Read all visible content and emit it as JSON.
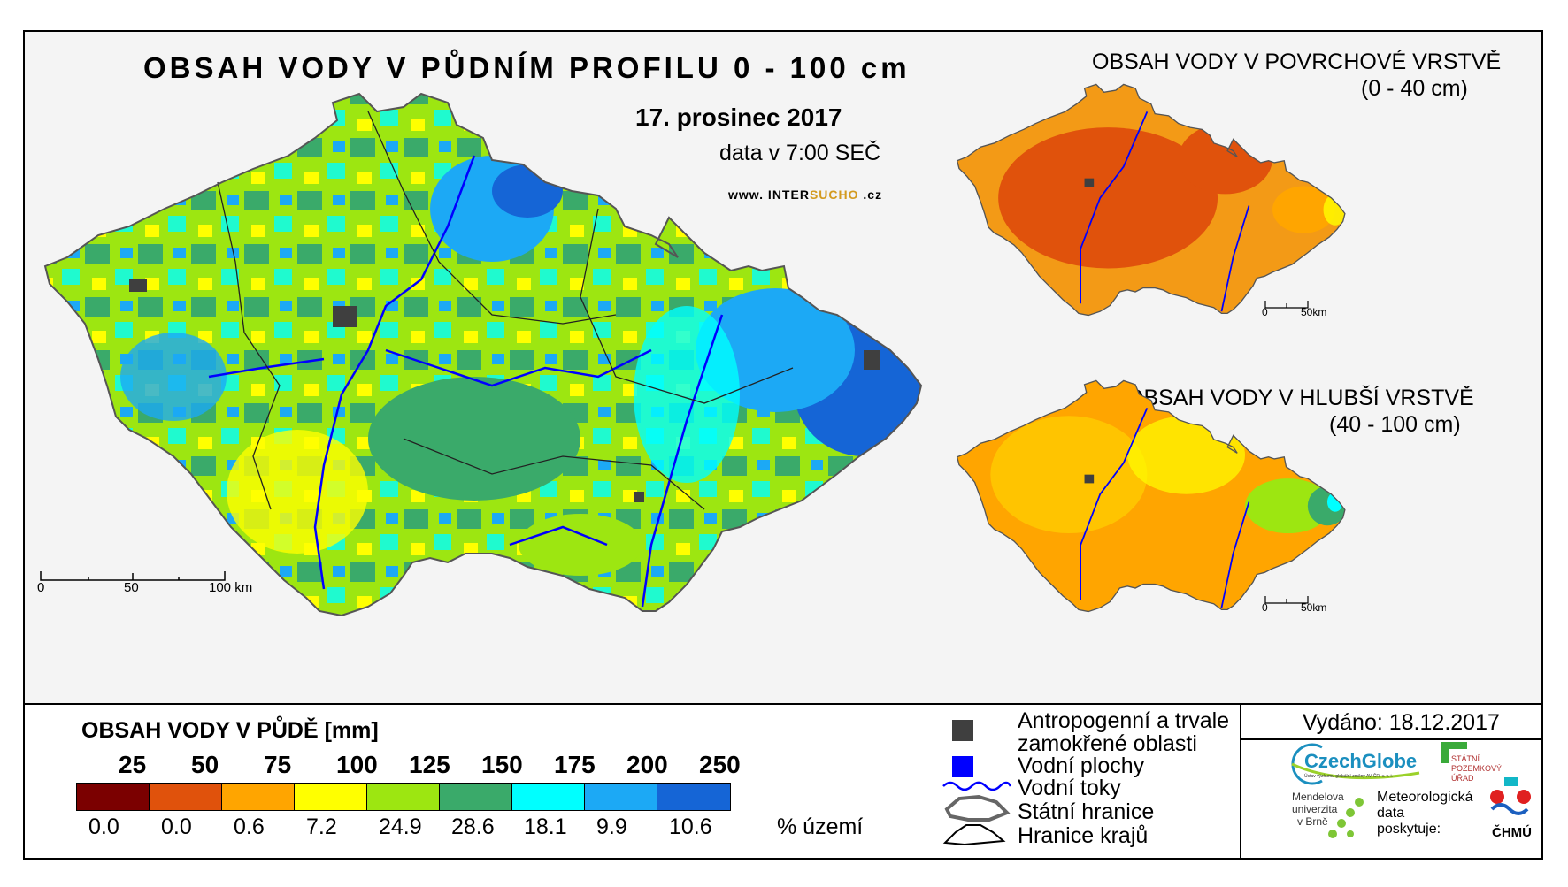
{
  "main_map": {
    "title": "OBSAH VODY V PŮDNÍM PROFILU 0 - 100 cm",
    "date": "17. prosinec 2017",
    "time": "data v 7:00 SEČ",
    "url_prefix": "www. INTER",
    "url_highlight": "SUCHO",
    "url_suffix": " .cz",
    "scale": [
      "0",
      "50",
      "100 km"
    ]
  },
  "surface_map": {
    "title": "OBSAH VODY V POVRCHOVÉ VRSTVĚ",
    "range": "(0 - 40 cm)",
    "scale": [
      "0",
      "50km"
    ]
  },
  "deep_map": {
    "title": "OBSAH VODY V HLUBŠÍ VRSTVĚ",
    "range": "(40 - 100 cm)",
    "scale": [
      "0",
      "50km"
    ]
  },
  "legend": {
    "title": "OBSAH VODY V PŮDĚ [mm]",
    "thresholds": [
      "25",
      "50",
      "75",
      "100",
      "125",
      "150",
      "175",
      "200",
      "250"
    ],
    "colors": [
      "#7b0000",
      "#e0520c",
      "#ffa500",
      "#ffff00",
      "#9de611",
      "#3aaa6a",
      "#00ffff",
      "#1ca9f5",
      "#1565d6"
    ],
    "percentages": [
      "0.0",
      "0.0",
      "0.6",
      "7.2",
      "24.9",
      "28.6",
      "18.1",
      "9.9",
      "10.6"
    ],
    "percent_unit": "% území"
  },
  "symbols": {
    "antropogenic_1": "Antropogenní a trvale",
    "antropogenic_2": "zamokřené oblasti",
    "water_areas": "Vodní plochy",
    "rivers": "Vodní toky",
    "state_border": "Státní hranice",
    "region_border": "Hranice krajů"
  },
  "issued": "Vydáno: 18.12.2017",
  "logos": {
    "czechglobe": "CzechGlobe",
    "czechglobe_sub": "Ústav výzkumu globální změny AV ČR, v. v. i.",
    "mendelu_1": "Mendelova",
    "mendelu_2": "univerzita",
    "mendelu_3": "v Brně",
    "spu_1": "STÁTNÍ",
    "spu_2": "POZEMKOVÝ",
    "spu_3": "ÚŘAD",
    "meteo_1": "Meteorologická",
    "meteo_2": "data",
    "meteo_3": "poskytuje:",
    "chmu": "ČHMÚ"
  }
}
